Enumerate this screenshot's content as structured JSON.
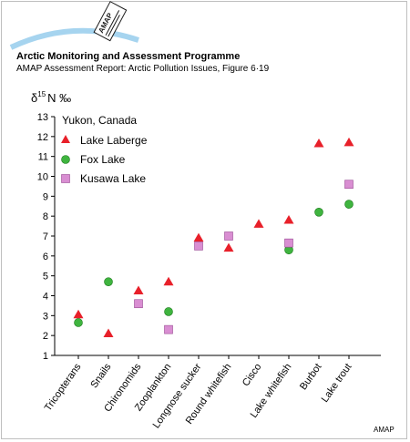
{
  "header": {
    "logo_text": "AMAP",
    "org": "Arctic Monitoring and Assessment Programme",
    "subtitle": "AMAP Assessment Report: Arctic Pollution Issues, Figure 6·19"
  },
  "footer": {
    "credit": "AMAP"
  },
  "colors": {
    "lake_laberge": "#e8202a",
    "fox_lake": "#3fb43f",
    "kusawa_lake": "#d98ed2",
    "arc": "#a6d4ef"
  },
  "chart_data": {
    "type": "scatter",
    "title": "",
    "ylabel": "δ15 N ‰",
    "ylabel_parts": {
      "delta": "δ",
      "sup": "15",
      "rest": "N ‰"
    },
    "ylim": [
      1,
      13
    ],
    "yticks": [
      1,
      2,
      3,
      4,
      5,
      6,
      7,
      8,
      9,
      10,
      11,
      12,
      13
    ],
    "grid": false,
    "legend_title": "Yukon, Canada",
    "legend_position": "top-left",
    "categories": [
      "Tricopterans",
      "Snails",
      "Chironomids",
      "Zooplankton",
      "Longnose sucker",
      "Round whitefish",
      "Cisco",
      "Lake whitefish",
      "Burbot",
      "Lake trout"
    ],
    "series": [
      {
        "name": "Lake Laberge",
        "marker": "triangle",
        "color": "#e8202a",
        "values": [
          3.05,
          2.1,
          4.25,
          4.7,
          6.9,
          6.4,
          7.6,
          7.8,
          11.65,
          11.7
        ]
      },
      {
        "name": "Fox Lake",
        "marker": "circle",
        "color": "#3fb43f",
        "values": [
          2.65,
          4.7,
          null,
          3.2,
          null,
          null,
          null,
          6.3,
          8.2,
          8.6
        ]
      },
      {
        "name": "Kusawa Lake",
        "marker": "square",
        "color": "#d98ed2",
        "values": [
          null,
          null,
          3.6,
          2.3,
          6.5,
          7.0,
          null,
          6.65,
          null,
          9.6
        ]
      }
    ]
  }
}
